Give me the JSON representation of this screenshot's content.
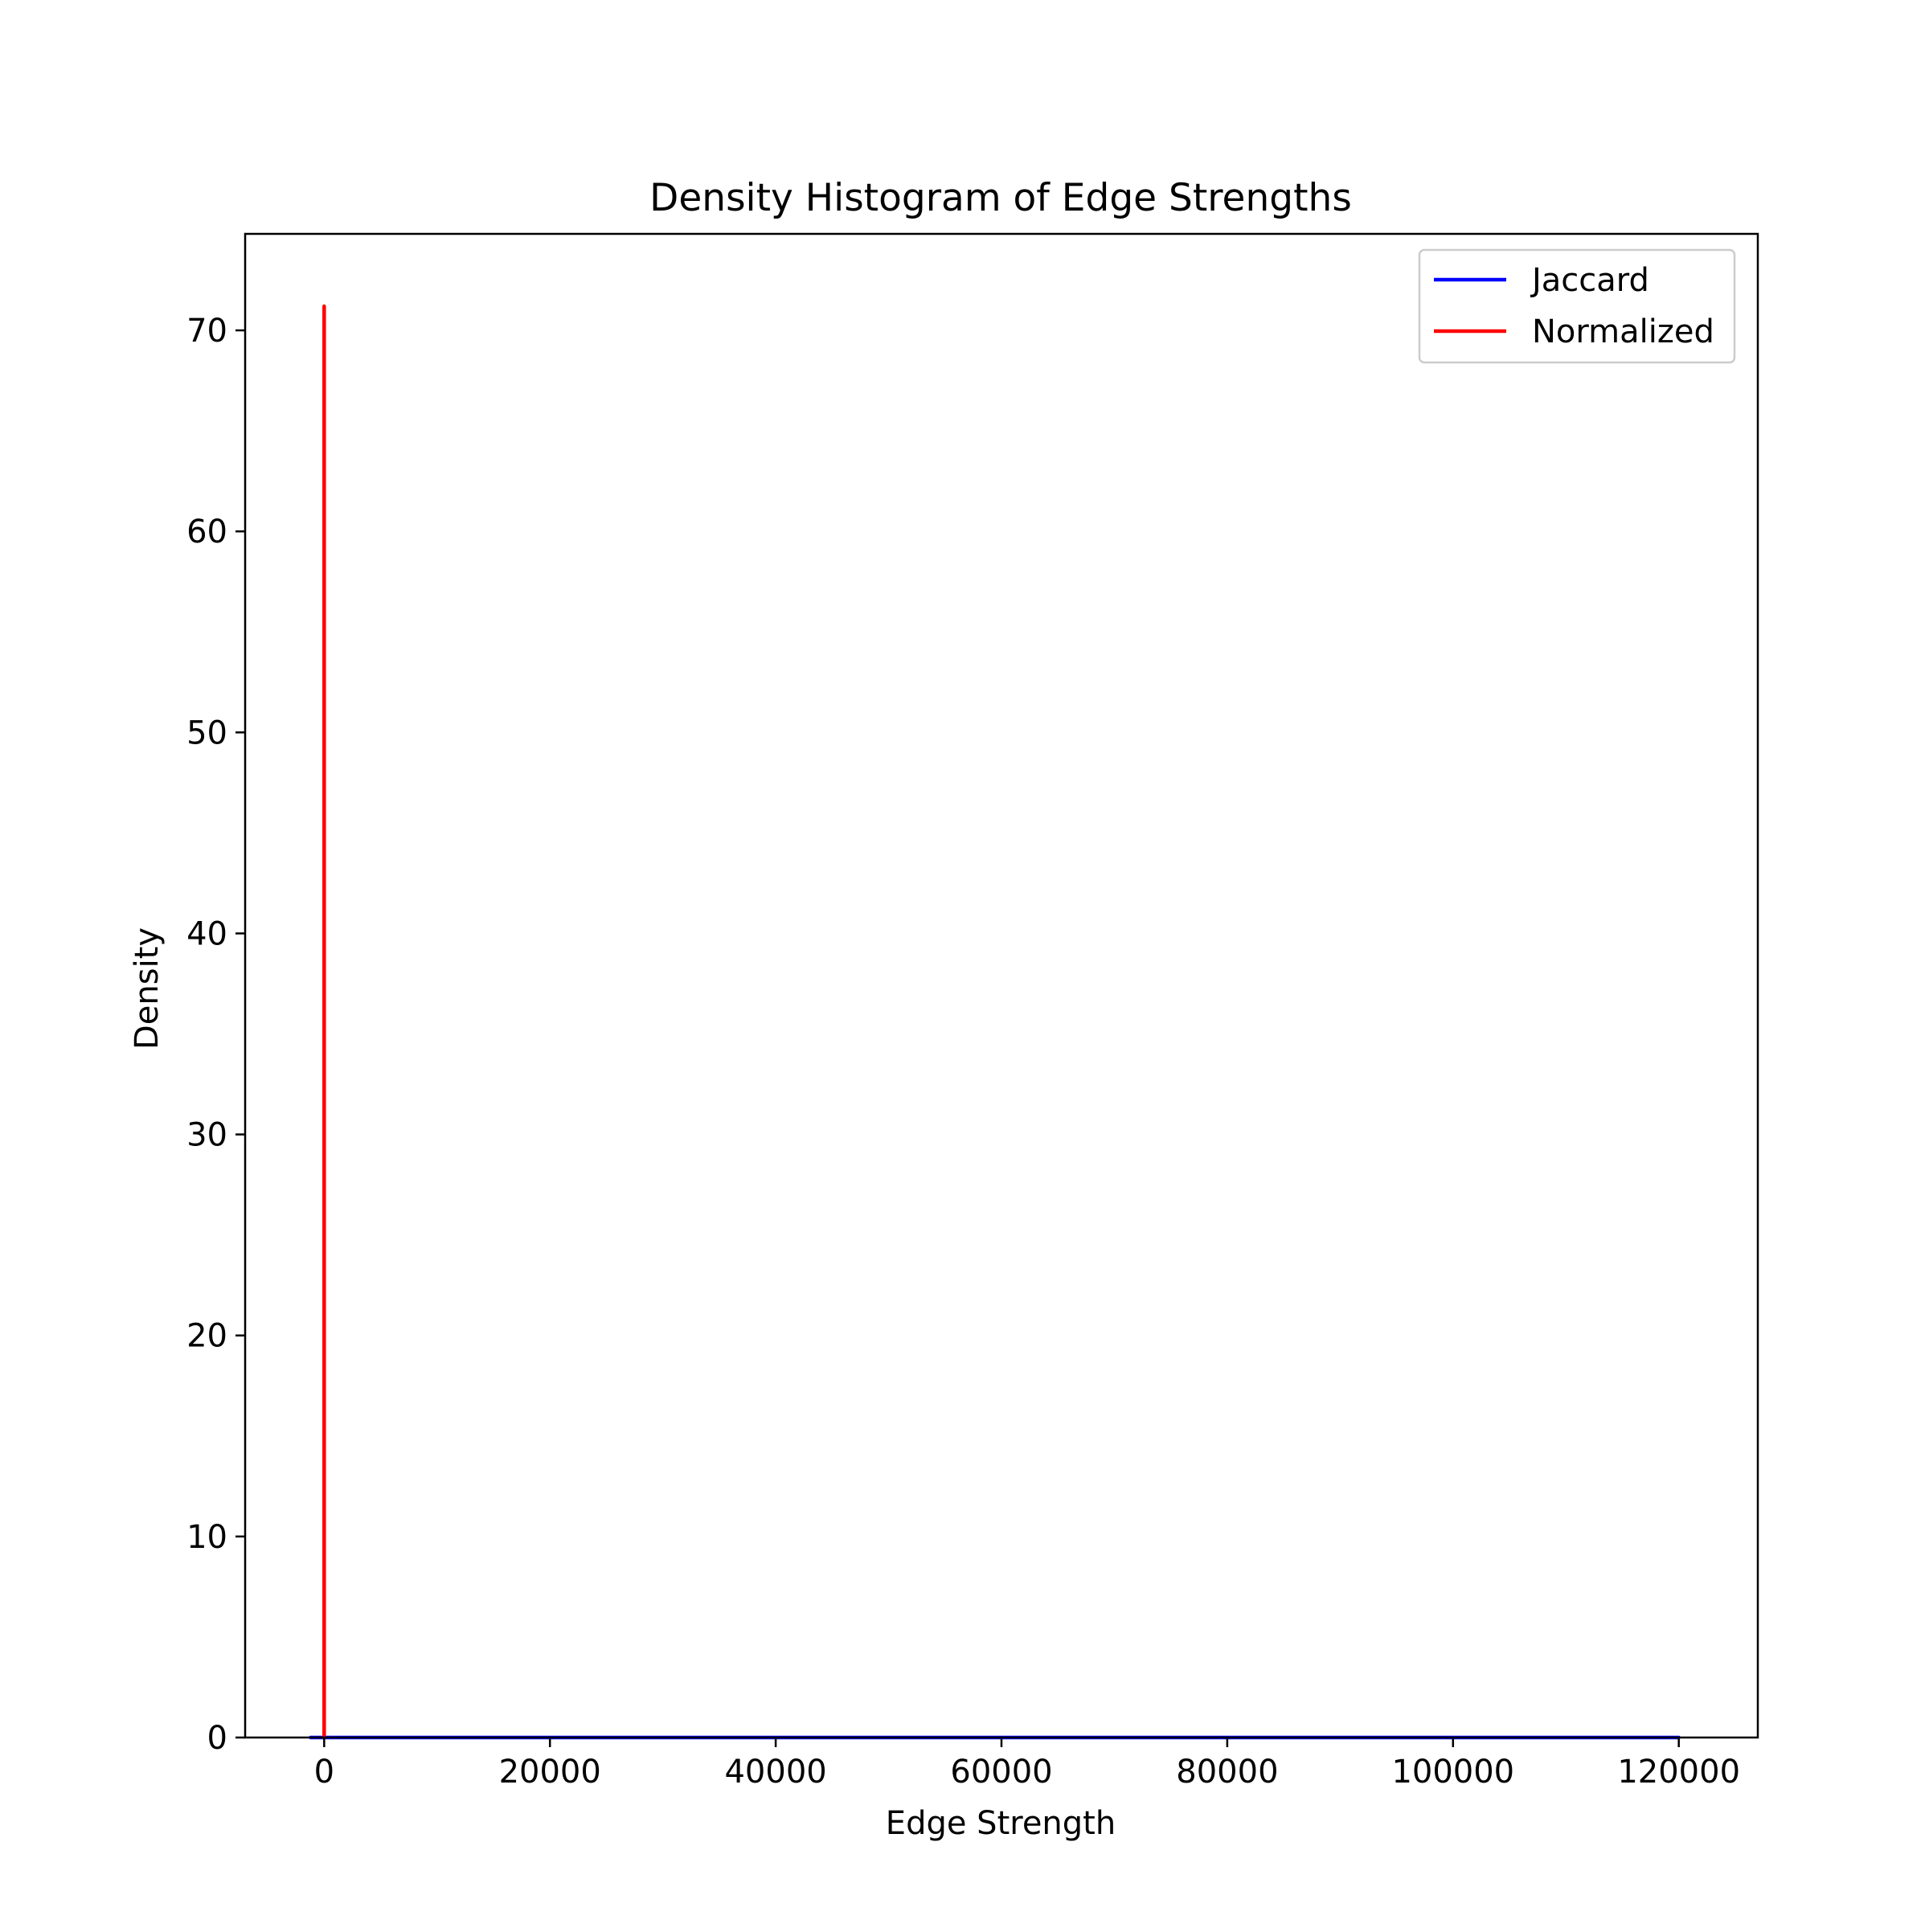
{
  "chart_data": {
    "type": "line",
    "title": "Density Histogram of Edge Strengths",
    "xlabel": "Edge Strength",
    "ylabel": "Density",
    "xlim": [
      -7000,
      127000
    ],
    "ylim": [
      0,
      74.8
    ],
    "x_ticks": [
      0,
      20000,
      40000,
      60000,
      80000,
      100000,
      120000
    ],
    "x_tick_labels": [
      "0",
      "20000",
      "40000",
      "60000",
      "80000",
      "100000",
      "120000"
    ],
    "y_ticks": [
      0,
      10,
      20,
      30,
      40,
      50,
      60,
      70
    ],
    "y_tick_labels": [
      "0",
      "10",
      "20",
      "30",
      "40",
      "50",
      "60",
      "70"
    ],
    "grid": false,
    "legend_position": "top-right",
    "series": [
      {
        "name": "Jaccard",
        "color": "#0000ff",
        "points": [
          [
            -1200,
            0.0
          ],
          [
            0,
            0.0
          ],
          [
            60000,
            0.0
          ],
          [
            120000,
            0.0
          ]
        ]
      },
      {
        "name": "Normalized",
        "color": "#ff0000",
        "points": [
          [
            0,
            0.0
          ],
          [
            0,
            71.2
          ],
          [
            0,
            0.0
          ]
        ]
      }
    ]
  }
}
